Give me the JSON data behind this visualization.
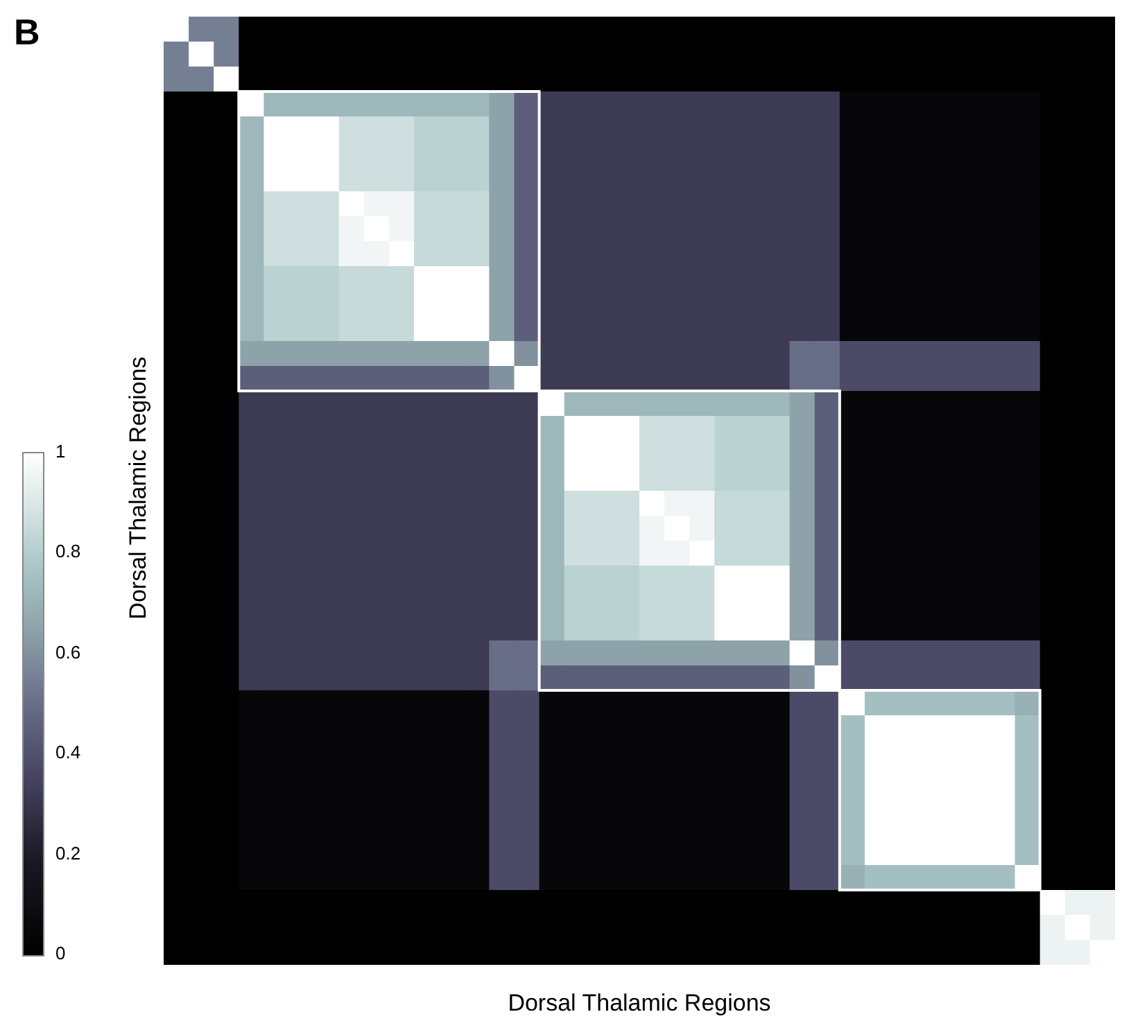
{
  "chart_data": {
    "type": "heatmap",
    "xlabel": "Dorsal Thalamic Regions",
    "ylabel": "Dorsal Thalamic Regions",
    "annotations": [
      "B"
    ],
    "tick_labels": false,
    "clim": [
      0,
      1
    ],
    "cticks": [
      0,
      0.2,
      0.4,
      0.6,
      0.8,
      1
    ],
    "categories": [
      null,
      null,
      null,
      null,
      null,
      null,
      null,
      null,
      null,
      null,
      null,
      null,
      null,
      null,
      null,
      null,
      null,
      null,
      null,
      null,
      null,
      null,
      null,
      null,
      null,
      null,
      null,
      null,
      null,
      null,
      null,
      null,
      null,
      null,
      null,
      null,
      null,
      null
    ],
    "y_categories": [
      null,
      null,
      null,
      null,
      null,
      null,
      null,
      null,
      null,
      null,
      null,
      null,
      null,
      null,
      null,
      null,
      null,
      null,
      null,
      null,
      null,
      null,
      null,
      null,
      null,
      null,
      null,
      null,
      null,
      null,
      null,
      null,
      null,
      null,
      null,
      null,
      null,
      null
    ],
    "cells": [
      [
        1,
        0.55,
        0.55,
        0,
        0,
        0,
        0,
        0,
        0,
        0,
        0,
        0,
        0,
        0,
        0,
        0,
        0,
        0,
        0,
        0,
        0,
        0,
        0,
        0,
        0,
        0,
        0,
        0,
        0,
        0,
        0,
        0,
        0,
        0,
        0,
        0,
        0,
        0
      ],
      [
        0.55,
        1,
        0.55,
        0,
        0,
        0,
        0,
        0,
        0,
        0,
        0,
        0,
        0,
        0,
        0,
        0,
        0,
        0,
        0,
        0,
        0,
        0,
        0,
        0,
        0,
        0,
        0,
        0,
        0,
        0,
        0,
        0,
        0,
        0,
        0,
        0,
        0,
        0
      ],
      [
        0.55,
        0.55,
        1,
        0,
        0,
        0,
        0,
        0,
        0,
        0,
        0,
        0,
        0,
        0,
        0,
        0,
        0,
        0,
        0,
        0,
        0,
        0,
        0,
        0,
        0,
        0,
        0,
        0,
        0,
        0,
        0,
        0,
        0,
        0,
        0,
        0,
        0,
        0
      ],
      [
        0,
        0,
        0,
        1,
        0.72,
        0.72,
        0.72,
        0.72,
        0.72,
        0.72,
        0.72,
        0.72,
        0.72,
        0.65,
        0.45,
        0.32,
        0.32,
        0.32,
        0.32,
        0.32,
        0.32,
        0.32,
        0.32,
        0.32,
        0.32,
        0.32,
        0.32,
        0.05,
        0.05,
        0.05,
        0.05,
        0.05,
        0.05,
        0.05,
        0.05,
        0,
        0,
        0
      ],
      [
        0,
        0,
        0,
        0.72,
        1,
        1,
        1,
        0.87,
        0.87,
        0.87,
        0.82,
        0.82,
        0.82,
        0.65,
        0.45,
        0.32,
        0.32,
        0.32,
        0.32,
        0.32,
        0.32,
        0.32,
        0.32,
        0.32,
        0.32,
        0.32,
        0.32,
        0.05,
        0.05,
        0.05,
        0.05,
        0.05,
        0.05,
        0.05,
        0.05,
        0,
        0,
        0
      ],
      [
        0,
        0,
        0,
        0.72,
        1,
        1,
        1,
        0.87,
        0.87,
        0.87,
        0.82,
        0.82,
        0.82,
        0.65,
        0.45,
        0.32,
        0.32,
        0.32,
        0.32,
        0.32,
        0.32,
        0.32,
        0.32,
        0.32,
        0.32,
        0.32,
        0.32,
        0.05,
        0.05,
        0.05,
        0.05,
        0.05,
        0.05,
        0.05,
        0.05,
        0,
        0,
        0
      ],
      [
        0,
        0,
        0,
        0.72,
        1,
        1,
        1,
        0.87,
        0.87,
        0.87,
        0.82,
        0.82,
        0.82,
        0.65,
        0.45,
        0.32,
        0.32,
        0.32,
        0.32,
        0.32,
        0.32,
        0.32,
        0.32,
        0.32,
        0.32,
        0.32,
        0.32,
        0.05,
        0.05,
        0.05,
        0.05,
        0.05,
        0.05,
        0.05,
        0.05,
        0,
        0,
        0
      ],
      [
        0,
        0,
        0,
        0.72,
        0.87,
        0.87,
        0.87,
        1,
        0.96,
        0.96,
        0.85,
        0.85,
        0.85,
        0.65,
        0.45,
        0.32,
        0.32,
        0.32,
        0.32,
        0.32,
        0.32,
        0.32,
        0.32,
        0.32,
        0.32,
        0.32,
        0.32,
        0.05,
        0.05,
        0.05,
        0.05,
        0.05,
        0.05,
        0.05,
        0.05,
        0,
        0,
        0
      ],
      [
        0,
        0,
        0,
        0.72,
        0.87,
        0.87,
        0.87,
        0.96,
        1,
        0.96,
        0.85,
        0.85,
        0.85,
        0.65,
        0.45,
        0.32,
        0.32,
        0.32,
        0.32,
        0.32,
        0.32,
        0.32,
        0.32,
        0.32,
        0.32,
        0.32,
        0.32,
        0.05,
        0.05,
        0.05,
        0.05,
        0.05,
        0.05,
        0.05,
        0.05,
        0,
        0,
        0
      ],
      [
        0,
        0,
        0,
        0.72,
        0.87,
        0.87,
        0.87,
        0.96,
        0.96,
        1,
        0.85,
        0.85,
        0.85,
        0.65,
        0.45,
        0.32,
        0.32,
        0.32,
        0.32,
        0.32,
        0.32,
        0.32,
        0.32,
        0.32,
        0.32,
        0.32,
        0.32,
        0.05,
        0.05,
        0.05,
        0.05,
        0.05,
        0.05,
        0.05,
        0.05,
        0,
        0,
        0
      ],
      [
        0,
        0,
        0,
        0.72,
        0.82,
        0.82,
        0.82,
        0.85,
        0.85,
        0.85,
        1,
        1,
        1,
        0.65,
        0.45,
        0.32,
        0.32,
        0.32,
        0.32,
        0.32,
        0.32,
        0.32,
        0.32,
        0.32,
        0.32,
        0.32,
        0.32,
        0.05,
        0.05,
        0.05,
        0.05,
        0.05,
        0.05,
        0.05,
        0.05,
        0,
        0,
        0
      ],
      [
        0,
        0,
        0,
        0.72,
        0.82,
        0.82,
        0.82,
        0.85,
        0.85,
        0.85,
        1,
        1,
        1,
        0.65,
        0.45,
        0.32,
        0.32,
        0.32,
        0.32,
        0.32,
        0.32,
        0.32,
        0.32,
        0.32,
        0.32,
        0.32,
        0.32,
        0.05,
        0.05,
        0.05,
        0.05,
        0.05,
        0.05,
        0.05,
        0.05,
        0,
        0,
        0
      ],
      [
        0,
        0,
        0,
        0.72,
        0.82,
        0.82,
        0.82,
        0.85,
        0.85,
        0.85,
        1,
        1,
        1,
        0.65,
        0.45,
        0.32,
        0.32,
        0.32,
        0.32,
        0.32,
        0.32,
        0.32,
        0.32,
        0.32,
        0.32,
        0.32,
        0.32,
        0.05,
        0.05,
        0.05,
        0.05,
        0.05,
        0.05,
        0.05,
        0.05,
        0,
        0,
        0
      ],
      [
        0,
        0,
        0,
        0.65,
        0.65,
        0.65,
        0.65,
        0.65,
        0.65,
        0.65,
        0.65,
        0.65,
        0.65,
        1,
        0.6,
        0.32,
        0.32,
        0.32,
        0.32,
        0.32,
        0.32,
        0.32,
        0.32,
        0.32,
        0.32,
        0.5,
        0.5,
        0.38,
        0.38,
        0.38,
        0.38,
        0.38,
        0.38,
        0.38,
        0.38,
        0,
        0,
        0
      ],
      [
        0,
        0,
        0,
        0.45,
        0.45,
        0.45,
        0.45,
        0.45,
        0.45,
        0.45,
        0.45,
        0.45,
        0.45,
        0.6,
        1,
        0.32,
        0.32,
        0.32,
        0.32,
        0.32,
        0.32,
        0.32,
        0.32,
        0.32,
        0.32,
        0.5,
        0.5,
        0.38,
        0.38,
        0.38,
        0.38,
        0.38,
        0.38,
        0.38,
        0.38,
        0,
        0,
        0
      ],
      [
        0,
        0,
        0,
        0.32,
        0.32,
        0.32,
        0.32,
        0.32,
        0.32,
        0.32,
        0.32,
        0.32,
        0.32,
        0.32,
        0.32,
        1,
        0.72,
        0.72,
        0.72,
        0.72,
        0.72,
        0.72,
        0.72,
        0.72,
        0.72,
        0.65,
        0.45,
        0.05,
        0.05,
        0.05,
        0.05,
        0.05,
        0.05,
        0.05,
        0.05,
        0,
        0,
        0
      ],
      [
        0,
        0,
        0,
        0.32,
        0.32,
        0.32,
        0.32,
        0.32,
        0.32,
        0.32,
        0.32,
        0.32,
        0.32,
        0.32,
        0.32,
        0.72,
        1,
        1,
        1,
        0.87,
        0.87,
        0.87,
        0.82,
        0.82,
        0.82,
        0.65,
        0.45,
        0.05,
        0.05,
        0.05,
        0.05,
        0.05,
        0.05,
        0.05,
        0.05,
        0,
        0,
        0
      ],
      [
        0,
        0,
        0,
        0.32,
        0.32,
        0.32,
        0.32,
        0.32,
        0.32,
        0.32,
        0.32,
        0.32,
        0.32,
        0.32,
        0.32,
        0.72,
        1,
        1,
        1,
        0.87,
        0.87,
        0.87,
        0.82,
        0.82,
        0.82,
        0.65,
        0.45,
        0.05,
        0.05,
        0.05,
        0.05,
        0.05,
        0.05,
        0.05,
        0.05,
        0,
        0,
        0
      ],
      [
        0,
        0,
        0,
        0.32,
        0.32,
        0.32,
        0.32,
        0.32,
        0.32,
        0.32,
        0.32,
        0.32,
        0.32,
        0.32,
        0.32,
        0.72,
        1,
        1,
        1,
        0.87,
        0.87,
        0.87,
        0.82,
        0.82,
        0.82,
        0.65,
        0.45,
        0.05,
        0.05,
        0.05,
        0.05,
        0.05,
        0.05,
        0.05,
        0.05,
        0,
        0,
        0
      ],
      [
        0,
        0,
        0,
        0.32,
        0.32,
        0.32,
        0.32,
        0.32,
        0.32,
        0.32,
        0.32,
        0.32,
        0.32,
        0.32,
        0.32,
        0.72,
        0.87,
        0.87,
        0.87,
        1,
        0.96,
        0.96,
        0.85,
        0.85,
        0.85,
        0.65,
        0.45,
        0.05,
        0.05,
        0.05,
        0.05,
        0.05,
        0.05,
        0.05,
        0.05,
        0,
        0,
        0
      ],
      [
        0,
        0,
        0,
        0.32,
        0.32,
        0.32,
        0.32,
        0.32,
        0.32,
        0.32,
        0.32,
        0.32,
        0.32,
        0.32,
        0.32,
        0.72,
        0.87,
        0.87,
        0.87,
        0.96,
        1,
        0.96,
        0.85,
        0.85,
        0.85,
        0.65,
        0.45,
        0.05,
        0.05,
        0.05,
        0.05,
        0.05,
        0.05,
        0.05,
        0.05,
        0,
        0,
        0
      ],
      [
        0,
        0,
        0,
        0.32,
        0.32,
        0.32,
        0.32,
        0.32,
        0.32,
        0.32,
        0.32,
        0.32,
        0.32,
        0.32,
        0.32,
        0.72,
        0.87,
        0.87,
        0.87,
        0.96,
        0.96,
        1,
        0.85,
        0.85,
        0.85,
        0.65,
        0.45,
        0.05,
        0.05,
        0.05,
        0.05,
        0.05,
        0.05,
        0.05,
        0.05,
        0,
        0,
        0
      ],
      [
        0,
        0,
        0,
        0.32,
        0.32,
        0.32,
        0.32,
        0.32,
        0.32,
        0.32,
        0.32,
        0.32,
        0.32,
        0.32,
        0.32,
        0.72,
        0.82,
        0.82,
        0.82,
        0.85,
        0.85,
        0.85,
        1,
        1,
        1,
        0.65,
        0.45,
        0.05,
        0.05,
        0.05,
        0.05,
        0.05,
        0.05,
        0.05,
        0.05,
        0,
        0,
        0
      ],
      [
        0,
        0,
        0,
        0.32,
        0.32,
        0.32,
        0.32,
        0.32,
        0.32,
        0.32,
        0.32,
        0.32,
        0.32,
        0.32,
        0.32,
        0.72,
        0.82,
        0.82,
        0.82,
        0.85,
        0.85,
        0.85,
        1,
        1,
        1,
        0.65,
        0.45,
        0.05,
        0.05,
        0.05,
        0.05,
        0.05,
        0.05,
        0.05,
        0.05,
        0,
        0,
        0
      ],
      [
        0,
        0,
        0,
        0.32,
        0.32,
        0.32,
        0.32,
        0.32,
        0.32,
        0.32,
        0.32,
        0.32,
        0.32,
        0.32,
        0.32,
        0.72,
        0.82,
        0.82,
        0.82,
        0.85,
        0.85,
        0.85,
        1,
        1,
        1,
        0.65,
        0.45,
        0.05,
        0.05,
        0.05,
        0.05,
        0.05,
        0.05,
        0.05,
        0.05,
        0,
        0,
        0
      ],
      [
        0,
        0,
        0,
        0.32,
        0.32,
        0.32,
        0.32,
        0.32,
        0.32,
        0.32,
        0.32,
        0.32,
        0.32,
        0.5,
        0.5,
        0.65,
        0.65,
        0.65,
        0.65,
        0.65,
        0.65,
        0.65,
        0.65,
        0.65,
        0.65,
        1,
        0.6,
        0.38,
        0.38,
        0.38,
        0.38,
        0.38,
        0.38,
        0.38,
        0.38,
        0,
        0,
        0
      ],
      [
        0,
        0,
        0,
        0.32,
        0.32,
        0.32,
        0.32,
        0.32,
        0.32,
        0.32,
        0.32,
        0.32,
        0.32,
        0.5,
        0.5,
        0.45,
        0.45,
        0.45,
        0.45,
        0.45,
        0.45,
        0.45,
        0.45,
        0.45,
        0.45,
        0.6,
        1,
        0.38,
        0.38,
        0.38,
        0.38,
        0.38,
        0.38,
        0.38,
        0.38,
        0,
        0,
        0
      ],
      [
        0,
        0,
        0,
        0.05,
        0.05,
        0.05,
        0.05,
        0.05,
        0.05,
        0.05,
        0.05,
        0.05,
        0.05,
        0.38,
        0.38,
        0.05,
        0.05,
        0.05,
        0.05,
        0.05,
        0.05,
        0.05,
        0.05,
        0.05,
        0.05,
        0.38,
        0.38,
        1,
        0.75,
        0.75,
        0.75,
        0.75,
        0.75,
        0.75,
        0.7,
        0,
        0,
        0
      ],
      [
        0,
        0,
        0,
        0.05,
        0.05,
        0.05,
        0.05,
        0.05,
        0.05,
        0.05,
        0.05,
        0.05,
        0.05,
        0.38,
        0.38,
        0.05,
        0.05,
        0.05,
        0.05,
        0.05,
        0.05,
        0.05,
        0.05,
        0.05,
        0.05,
        0.38,
        0.38,
        0.75,
        1,
        1,
        1,
        1,
        1,
        1,
        0.75,
        0,
        0,
        0
      ],
      [
        0,
        0,
        0,
        0.05,
        0.05,
        0.05,
        0.05,
        0.05,
        0.05,
        0.05,
        0.05,
        0.05,
        0.05,
        0.38,
        0.38,
        0.05,
        0.05,
        0.05,
        0.05,
        0.05,
        0.05,
        0.05,
        0.05,
        0.05,
        0.05,
        0.38,
        0.38,
        0.75,
        1,
        1,
        1,
        1,
        1,
        1,
        0.75,
        0,
        0,
        0
      ],
      [
        0,
        0,
        0,
        0.05,
        0.05,
        0.05,
        0.05,
        0.05,
        0.05,
        0.05,
        0.05,
        0.05,
        0.05,
        0.38,
        0.38,
        0.05,
        0.05,
        0.05,
        0.05,
        0.05,
        0.05,
        0.05,
        0.05,
        0.05,
        0.05,
        0.38,
        0.38,
        0.75,
        1,
        1,
        1,
        1,
        1,
        1,
        0.75,
        0,
        0,
        0
      ],
      [
        0,
        0,
        0,
        0.05,
        0.05,
        0.05,
        0.05,
        0.05,
        0.05,
        0.05,
        0.05,
        0.05,
        0.05,
        0.38,
        0.38,
        0.05,
        0.05,
        0.05,
        0.05,
        0.05,
        0.05,
        0.05,
        0.05,
        0.05,
        0.05,
        0.38,
        0.38,
        0.75,
        1,
        1,
        1,
        1,
        1,
        1,
        0.75,
        0,
        0,
        0
      ],
      [
        0,
        0,
        0,
        0.05,
        0.05,
        0.05,
        0.05,
        0.05,
        0.05,
        0.05,
        0.05,
        0.05,
        0.05,
        0.38,
        0.38,
        0.05,
        0.05,
        0.05,
        0.05,
        0.05,
        0.05,
        0.05,
        0.05,
        0.05,
        0.05,
        0.38,
        0.38,
        0.75,
        1,
        1,
        1,
        1,
        1,
        1,
        0.75,
        0,
        0,
        0
      ],
      [
        0,
        0,
        0,
        0.05,
        0.05,
        0.05,
        0.05,
        0.05,
        0.05,
        0.05,
        0.05,
        0.05,
        0.05,
        0.38,
        0.38,
        0.05,
        0.05,
        0.05,
        0.05,
        0.05,
        0.05,
        0.05,
        0.05,
        0.05,
        0.05,
        0.38,
        0.38,
        0.75,
        1,
        1,
        1,
        1,
        1,
        1,
        0.75,
        0,
        0,
        0
      ],
      [
        0,
        0,
        0,
        0.05,
        0.05,
        0.05,
        0.05,
        0.05,
        0.05,
        0.05,
        0.05,
        0.05,
        0.05,
        0.38,
        0.38,
        0.05,
        0.05,
        0.05,
        0.05,
        0.05,
        0.05,
        0.05,
        0.05,
        0.05,
        0.05,
        0.38,
        0.38,
        0.7,
        0.75,
        0.75,
        0.75,
        0.75,
        0.75,
        0.75,
        1,
        0,
        0,
        0
      ],
      [
        0,
        0,
        0,
        0,
        0,
        0,
        0,
        0,
        0,
        0,
        0,
        0,
        0,
        0,
        0,
        0,
        0,
        0,
        0,
        0,
        0,
        0,
        0,
        0,
        0,
        0,
        0,
        0,
        0,
        0,
        0,
        0,
        0,
        0,
        0,
        1,
        0.95,
        0.95
      ],
      [
        0,
        0,
        0,
        0,
        0,
        0,
        0,
        0,
        0,
        0,
        0,
        0,
        0,
        0,
        0,
        0,
        0,
        0,
        0,
        0,
        0,
        0,
        0,
        0,
        0,
        0,
        0,
        0,
        0,
        0,
        0,
        0,
        0,
        0,
        0,
        0.95,
        1,
        0.95
      ],
      [
        0,
        0,
        0,
        0,
        0,
        0,
        0,
        0,
        0,
        0,
        0,
        0,
        0,
        0,
        0,
        0,
        0,
        0,
        0,
        0,
        0,
        0,
        0,
        0,
        0,
        0,
        0,
        0,
        0,
        0,
        0,
        0,
        0,
        0,
        0,
        0.95,
        0.95,
        1
      ]
    ]
  }
}
